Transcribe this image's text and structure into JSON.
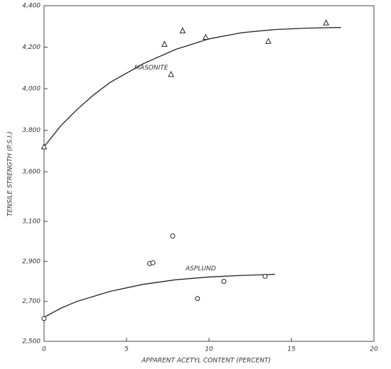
{
  "chart_data": {
    "type": "scatter",
    "xlabel": "APPARENT ACETYL CONTENT (PERCENT)",
    "ylabel": "TENSILE STRENGTH (P.S.I.)",
    "xlim": [
      0,
      20
    ],
    "xticks": [
      0,
      5,
      10,
      15,
      20
    ],
    "ylim": [
      2500,
      4400
    ],
    "ybreak": [
      3100,
      3600
    ],
    "yticks": [
      {
        "value": 2500,
        "label": "2,500"
      },
      {
        "value": 2700,
        "label": "2,700"
      },
      {
        "value": 2900,
        "label": "2,900"
      },
      {
        "value": 3100,
        "label": "3,100"
      },
      {
        "value": 3600,
        "label": "3,600"
      },
      {
        "value": 3800,
        "label": "3,800"
      },
      {
        "value": 4000,
        "label": "4,000"
      },
      {
        "value": 4200,
        "label": "4,200"
      },
      {
        "value": 4400,
        "label": "4,400"
      }
    ],
    "series": [
      {
        "name": "MASONITE",
        "color": "#222222",
        "marker": "triangle",
        "x": [
          0,
          7.3,
          7.7,
          8.4,
          9.8,
          13.6,
          17.1
        ],
        "values": [
          3720,
          4214,
          4069,
          4279,
          4248,
          4228,
          4317
        ],
        "curve_x": [
          0,
          1,
          2,
          3,
          4,
          6,
          8,
          10,
          12,
          14,
          16,
          18
        ],
        "curve_values": [
          3720,
          3820,
          3900,
          3970,
          4030,
          4120,
          4190,
          4240,
          4270,
          4285,
          4292,
          4295
        ]
      },
      {
        "name": "ASPLUND",
        "color": "#222222",
        "marker": "circle",
        "x": [
          0,
          6.4,
          6.6,
          7.8,
          9.3,
          10.9,
          13.4
        ],
        "values": [
          2614,
          2889,
          2893,
          3027,
          2714,
          2800,
          2825
        ],
        "curve_x": [
          0,
          1,
          2,
          4,
          6,
          8,
          10,
          12,
          14
        ],
        "curve_values": [
          2620,
          2665,
          2700,
          2750,
          2785,
          2808,
          2822,
          2830,
          2835
        ]
      }
    ]
  }
}
